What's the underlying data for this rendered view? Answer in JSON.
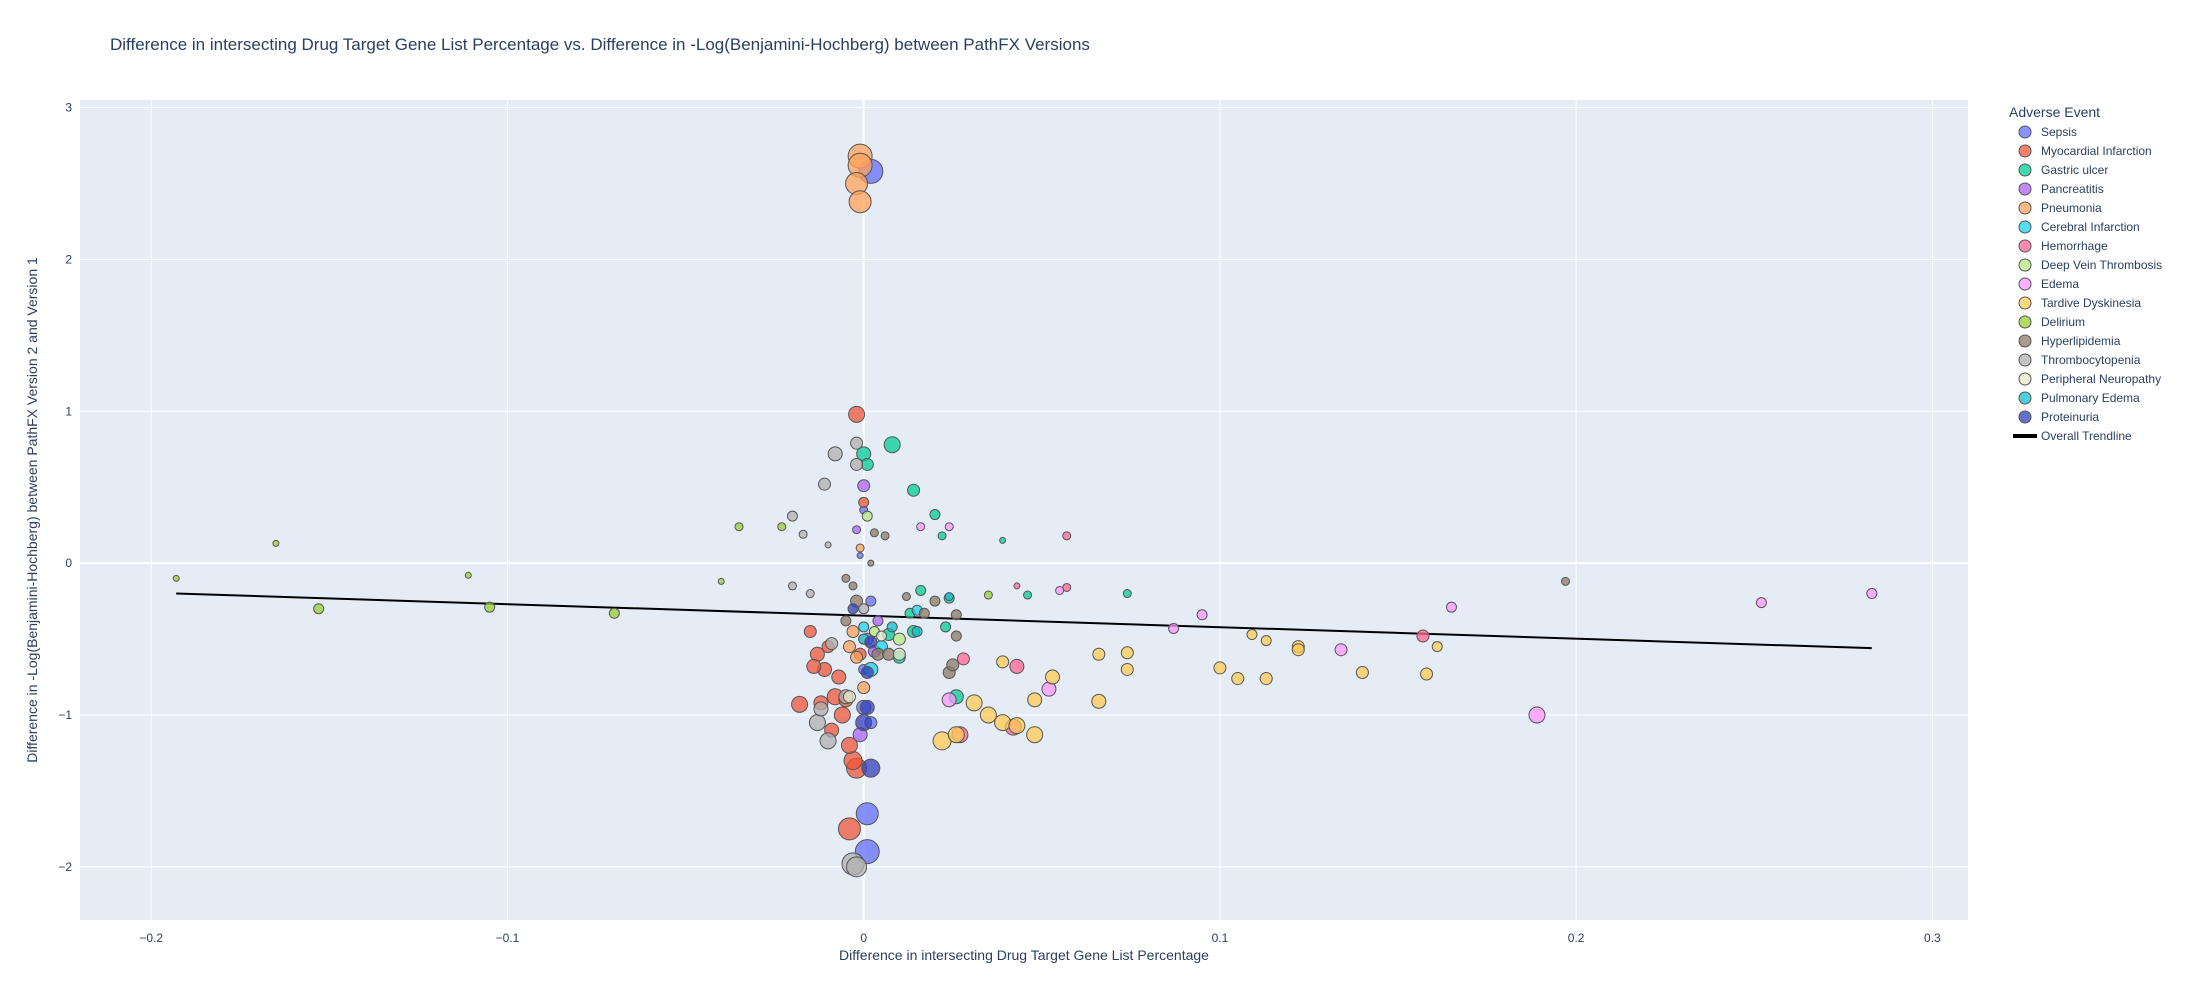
{
  "chart_data": {
    "type": "scatter",
    "title": "Difference in intersecting Drug Target Gene List Percentage vs. Difference in -Log(Benjamini-Hochberg) between PathFX Versions",
    "xlabel": "Difference in intersecting Drug Target Gene List Percentage",
    "ylabel": "Difference in -Log(Benjamini-Hochberg) between PathFX Version 2 and Version 1",
    "xlim": [
      -0.22,
      0.31
    ],
    "ylim": [
      -2.35,
      3.05
    ],
    "x_ticks": [
      -0.2,
      -0.1,
      0,
      0.1,
      0.2,
      0.3
    ],
    "x_tick_labels": [
      "−0.2",
      "−0.1",
      "0",
      "0.1",
      "0.2",
      "0.3"
    ],
    "y_ticks": [
      -2,
      -1,
      0,
      1,
      2,
      3
    ],
    "y_tick_labels": [
      "−2",
      "−1",
      "0",
      "1",
      "2",
      "3"
    ],
    "grid": true,
    "legend_title": "Adverse Event",
    "legend_position": "right",
    "series": [
      {
        "name": "Sepsis",
        "color": "#636efa",
        "points": [
          [
            0.002,
            2.58,
            12
          ],
          [
            0.001,
            -1.65,
            11
          ],
          [
            0.001,
            -1.9,
            12
          ],
          [
            0.0,
            -0.95,
            7
          ],
          [
            0.001,
            -0.5,
            6
          ],
          [
            0.002,
            -0.25,
            5
          ],
          [
            0.0,
            0.35,
            4
          ],
          [
            -0.001,
            0.05,
            3
          ],
          [
            0.0,
            -0.7,
            5
          ],
          [
            0.002,
            -1.05,
            6
          ]
        ]
      },
      {
        "name": "Myocardial Infarction",
        "color": "#EF553B",
        "points": [
          [
            -0.002,
            0.98,
            8
          ],
          [
            -0.004,
            -1.75,
            11
          ],
          [
            -0.002,
            -1.35,
            10
          ],
          [
            -0.003,
            -1.3,
            9
          ],
          [
            -0.006,
            -1.0,
            8
          ],
          [
            -0.008,
            -0.88,
            8
          ],
          [
            -0.011,
            -0.7,
            7
          ],
          [
            -0.013,
            -0.6,
            7
          ],
          [
            -0.01,
            -0.55,
            6
          ],
          [
            -0.007,
            -0.75,
            7
          ],
          [
            -0.005,
            -0.9,
            7
          ],
          [
            -0.015,
            -0.45,
            6
          ],
          [
            -0.012,
            -0.92,
            7
          ],
          [
            -0.018,
            -0.93,
            8
          ],
          [
            -0.009,
            -1.1,
            7
          ],
          [
            -0.004,
            -1.2,
            8
          ],
          [
            0.0,
            0.4,
            5
          ],
          [
            -0.001,
            -0.6,
            6
          ],
          [
            -0.014,
            -0.68,
            7
          ]
        ]
      },
      {
        "name": "Gastric ulcer",
        "color": "#00cc96",
        "points": [
          [
            0.008,
            0.78,
            8
          ],
          [
            0.0,
            0.72,
            7
          ],
          [
            0.001,
            0.65,
            6
          ],
          [
            0.014,
            0.48,
            6
          ],
          [
            0.02,
            0.32,
            5
          ],
          [
            0.022,
            0.18,
            4
          ],
          [
            0.016,
            -0.18,
            5
          ],
          [
            0.024,
            -0.23,
            5
          ],
          [
            0.014,
            -0.45,
            6
          ],
          [
            0.007,
            -0.47,
            6
          ],
          [
            0.013,
            -0.33,
            5
          ],
          [
            0.026,
            -0.88,
            7
          ],
          [
            0.046,
            -0.21,
            4
          ],
          [
            0.074,
            -0.2,
            4
          ],
          [
            0.01,
            -0.62,
            6
          ],
          [
            0.039,
            0.15,
            3
          ],
          [
            0.023,
            -0.42,
            5
          ]
        ]
      },
      {
        "name": "Pancreatitis",
        "color": "#ab63fa",
        "points": [
          [
            0.0,
            0.51,
            6
          ],
          [
            -0.001,
            -1.13,
            7
          ],
          [
            0.004,
            -0.38,
            5
          ],
          [
            0.003,
            -0.58,
            6
          ],
          [
            -0.002,
            0.22,
            4
          ]
        ]
      },
      {
        "name": "Pneumonia",
        "color": "#FFA15A",
        "points": [
          [
            -0.001,
            2.68,
            12
          ],
          [
            -0.001,
            2.62,
            12
          ],
          [
            -0.002,
            2.5,
            11
          ],
          [
            -0.001,
            2.38,
            11
          ],
          [
            -0.003,
            -0.45,
            6
          ],
          [
            -0.002,
            -0.62,
            6
          ],
          [
            0.0,
            -0.82,
            6
          ],
          [
            -0.004,
            -0.55,
            6
          ],
          [
            -0.001,
            0.1,
            4
          ]
        ]
      },
      {
        "name": "Cerebral Infarction",
        "color": "#19d3f3",
        "points": [
          [
            0.005,
            -0.55,
            6
          ],
          [
            0.002,
            -0.7,
            7
          ],
          [
            0.0,
            -0.42,
            5
          ],
          [
            0.015,
            -0.31,
            5
          ]
        ]
      },
      {
        "name": "Hemorrhage",
        "color": "#FF6692",
        "points": [
          [
            0.027,
            -1.13,
            8
          ],
          [
            0.043,
            -0.68,
            7
          ],
          [
            0.042,
            -1.08,
            8
          ],
          [
            0.028,
            -0.63,
            6
          ],
          [
            0.057,
            0.18,
            4
          ],
          [
            0.157,
            -0.48,
            6
          ],
          [
            0.057,
            -0.16,
            4
          ],
          [
            0.043,
            -0.15,
            3
          ]
        ]
      },
      {
        "name": "Deep Vein Thrombosis",
        "color": "#B6E880",
        "points": [
          [
            0.001,
            0.31,
            5
          ],
          [
            0.01,
            -0.5,
            6
          ],
          [
            0.003,
            -0.45,
            5
          ]
        ]
      },
      {
        "name": "Edema",
        "color": "#FF97FF",
        "points": [
          [
            0.189,
            -1.0,
            8
          ],
          [
            0.052,
            -0.83,
            7
          ],
          [
            0.134,
            -0.57,
            6
          ],
          [
            0.087,
            -0.43,
            5
          ],
          [
            0.095,
            -0.34,
            5
          ],
          [
            0.165,
            -0.29,
            5
          ],
          [
            0.252,
            -0.26,
            5
          ],
          [
            0.283,
            -0.2,
            5
          ],
          [
            0.024,
            -0.9,
            7
          ],
          [
            0.016,
            0.24,
            4
          ],
          [
            0.024,
            0.24,
            4
          ],
          [
            0.055,
            -0.18,
            4
          ]
        ]
      },
      {
        "name": "Tardive Dyskinesia",
        "color": "#FECB52",
        "points": [
          [
            0.022,
            -1.17,
            9
          ],
          [
            0.026,
            -1.13,
            8
          ],
          [
            0.031,
            -0.92,
            8
          ],
          [
            0.035,
            -1.0,
            8
          ],
          [
            0.039,
            -1.05,
            8
          ],
          [
            0.043,
            -1.07,
            8
          ],
          [
            0.048,
            -1.13,
            8
          ],
          [
            0.048,
            -0.9,
            7
          ],
          [
            0.053,
            -0.75,
            7
          ],
          [
            0.066,
            -0.91,
            7
          ],
          [
            0.066,
            -0.6,
            6
          ],
          [
            0.074,
            -0.7,
            6
          ],
          [
            0.074,
            -0.59,
            6
          ],
          [
            0.1,
            -0.69,
            6
          ],
          [
            0.105,
            -0.76,
            6
          ],
          [
            0.109,
            -0.47,
            5
          ],
          [
            0.113,
            -0.51,
            5
          ],
          [
            0.113,
            -0.76,
            6
          ],
          [
            0.122,
            -0.55,
            6
          ],
          [
            0.122,
            -0.57,
            6
          ],
          [
            0.14,
            -0.72,
            6
          ],
          [
            0.158,
            -0.73,
            6
          ],
          [
            0.161,
            -0.55,
            5
          ],
          [
            0.039,
            -0.65,
            6
          ]
        ]
      },
      {
        "name": "Delirium",
        "color": "#9ACD32",
        "points": [
          [
            -0.035,
            0.24,
            4
          ],
          [
            -0.023,
            0.24,
            4
          ],
          [
            -0.153,
            -0.3,
            5
          ],
          [
            -0.105,
            -0.29,
            5
          ],
          [
            -0.07,
            -0.33,
            5
          ],
          [
            -0.111,
            -0.08,
            3
          ],
          [
            -0.04,
            -0.12,
            3
          ],
          [
            -0.193,
            -0.1,
            3
          ],
          [
            -0.165,
            0.13,
            3
          ],
          [
            0.035,
            -0.21,
            4
          ]
        ]
      },
      {
        "name": "Hyperlipidemia",
        "color": "#8c7b66",
        "points": [
          [
            -0.002,
            -0.25,
            6
          ],
          [
            0.004,
            -0.6,
            6
          ],
          [
            0.007,
            -0.6,
            6
          ],
          [
            0.024,
            -0.72,
            6
          ],
          [
            0.025,
            -0.67,
            6
          ],
          [
            0.026,
            -0.48,
            5
          ],
          [
            0.017,
            -0.33,
            5
          ],
          [
            0.02,
            -0.25,
            5
          ],
          [
            0.006,
            0.18,
            4
          ],
          [
            0.003,
            0.2,
            4
          ],
          [
            0.012,
            -0.22,
            4
          ],
          [
            0.026,
            -0.34,
            5
          ],
          [
            -0.003,
            -0.15,
            4
          ],
          [
            -0.005,
            -0.38,
            5
          ],
          [
            0.197,
            -0.12,
            4
          ],
          [
            -0.005,
            -0.1,
            4
          ],
          [
            0.002,
            0.0,
            3
          ]
        ]
      },
      {
        "name": "Thrombocytopenia",
        "color": "#b0b0b0",
        "points": [
          [
            -0.003,
            -1.98,
            11
          ],
          [
            -0.002,
            -2.0,
            10
          ],
          [
            -0.01,
            -1.17,
            8
          ],
          [
            -0.013,
            -1.05,
            8
          ],
          [
            -0.005,
            -0.88,
            7
          ],
          [
            -0.012,
            -0.96,
            7
          ],
          [
            -0.008,
            0.72,
            7
          ],
          [
            -0.002,
            0.79,
            6
          ],
          [
            -0.002,
            0.65,
            6
          ],
          [
            -0.011,
            0.52,
            6
          ],
          [
            -0.02,
            0.31,
            5
          ],
          [
            -0.017,
            0.19,
            4
          ],
          [
            -0.01,
            0.12,
            3
          ],
          [
            -0.015,
            -0.2,
            4
          ],
          [
            -0.02,
            -0.15,
            4
          ],
          [
            -0.009,
            -0.53,
            6
          ],
          [
            0.0,
            -0.3,
            5
          ]
        ]
      },
      {
        "name": "Peripheral Neuropathy",
        "color": "#e8e8c8",
        "points": [
          [
            0.01,
            -0.6,
            6
          ],
          [
            0.005,
            -0.48,
            5
          ],
          [
            -0.004,
            -0.88,
            6
          ],
          [
            0.0,
            -0.5,
            5
          ]
        ]
      },
      {
        "name": "Pulmonary Edema",
        "color": "#17becf",
        "points": [
          [
            0.0,
            -0.5,
            5
          ],
          [
            0.015,
            -0.45,
            5
          ],
          [
            0.008,
            -0.42,
            5
          ],
          [
            0.024,
            -0.22,
            4
          ]
        ]
      },
      {
        "name": "Proteinuria",
        "color": "#3340b8",
        "points": [
          [
            0.002,
            -1.35,
            9
          ],
          [
            0.0,
            -1.05,
            8
          ],
          [
            0.001,
            -0.95,
            7
          ],
          [
            0.002,
            -0.52,
            6
          ],
          [
            0.001,
            -0.72,
            6
          ],
          [
            -0.003,
            -0.3,
            5
          ]
        ]
      }
    ],
    "trendline": {
      "name": "Overall Trendline",
      "x": [
        -0.193,
        0.283
      ],
      "y": [
        -0.2,
        -0.56
      ],
      "color": "#000000"
    }
  }
}
